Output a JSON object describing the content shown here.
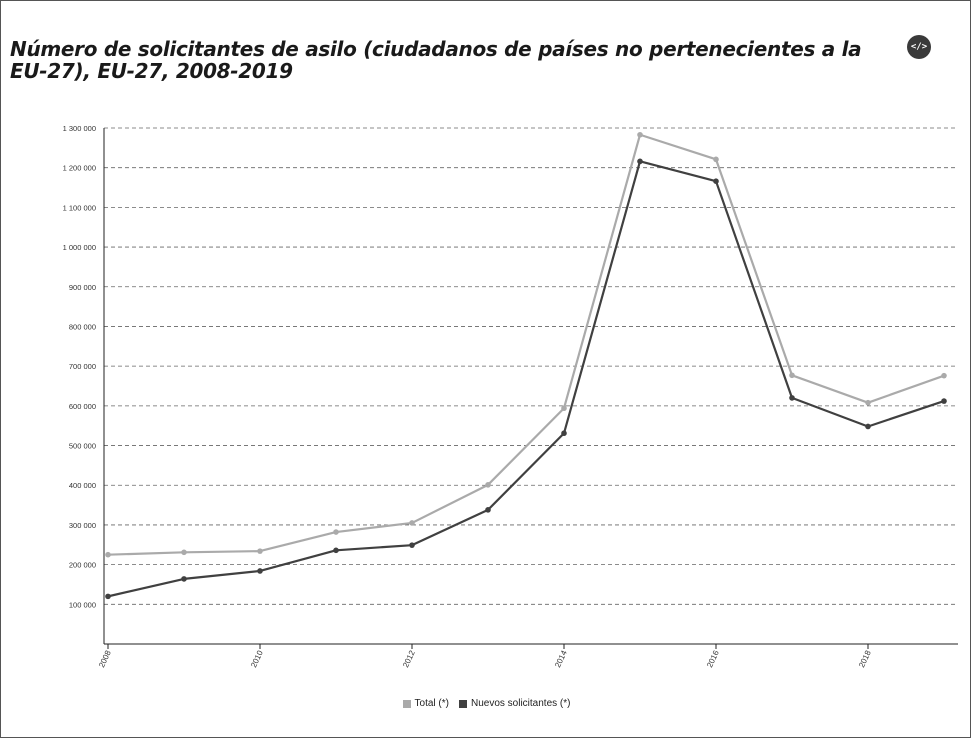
{
  "chart_data": {
    "type": "line",
    "title": "Número de solicitantes de asilo (ciudadanos de países no pertenecientes a la EU-27), EU-27, 2008-2019",
    "x": [
      2008,
      2009,
      2010,
      2011,
      2012,
      2013,
      2014,
      2015,
      2016,
      2017,
      2018,
      2019
    ],
    "x_tick_labels": [
      "2008",
      "2010",
      "2012",
      "2014",
      "2016",
      "2018"
    ],
    "y_ticks": [
      100000,
      200000,
      300000,
      400000,
      500000,
      600000,
      700000,
      800000,
      900000,
      1000000,
      1100000,
      1200000,
      1300000
    ],
    "y_tick_labels": [
      "100 000",
      "200 000",
      "300 000",
      "400 000",
      "500 000",
      "600 000",
      "700 000",
      "800 000",
      "900 000",
      "1 000 000",
      "1 100 000",
      "1 200 000",
      "1 300 000"
    ],
    "ylim": [
      0,
      1300000
    ],
    "grid": "horizontal dashed",
    "legend_position": "bottom",
    "series": [
      {
        "name": "Total (*)",
        "color": "#aaaaaa",
        "values": [
          225000,
          231000,
          234000,
          282000,
          305000,
          401000,
          594000,
          1283000,
          1221000,
          677000,
          608000,
          676000
        ]
      },
      {
        "name": "Nuevos solicitantes (*)",
        "color": "#404040",
        "values": [
          120000,
          164000,
          184000,
          236000,
          249000,
          338000,
          531000,
          1216000,
          1166000,
          620000,
          548000,
          612000
        ]
      }
    ]
  },
  "toolbar": {
    "embed_icon": "code-embed-icon",
    "embed_label": "</>"
  }
}
